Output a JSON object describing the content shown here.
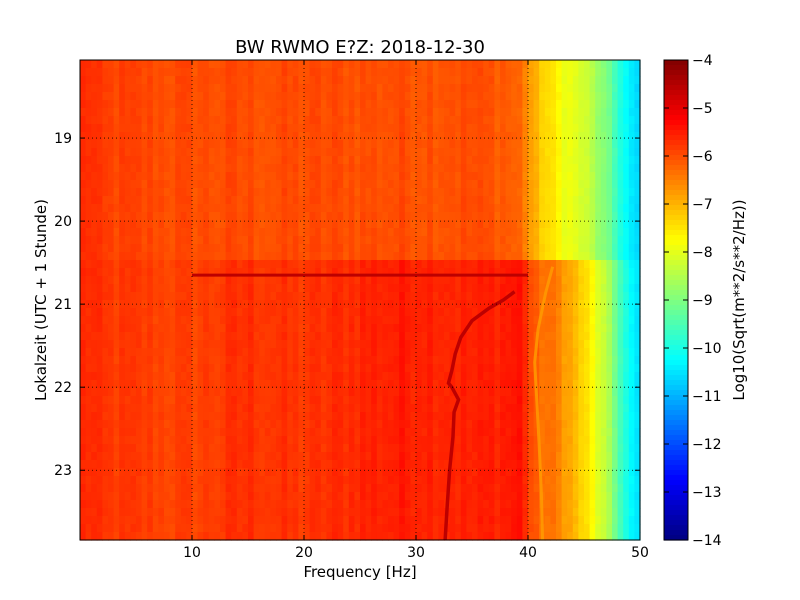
{
  "chart_data": {
    "type": "heatmap",
    "title": "BW RWMO E?Z: 2018-12-30",
    "xlabel": "Frequency [Hz]",
    "ylabel": "Lokalzeit (UTC + 1 Stunde)",
    "xlim": [
      0,
      50
    ],
    "ylim": [
      18.06,
      23.84
    ],
    "x_ticks": [
      10,
      20,
      30,
      40,
      50
    ],
    "x_tick_labels": [
      "10",
      "20",
      "30",
      "40",
      "50"
    ],
    "y_ticks": [
      19,
      20,
      21,
      22,
      23
    ],
    "y_tick_labels": [
      "19",
      "20",
      "21",
      "22",
      "23"
    ],
    "y_inverted": true,
    "grid": true,
    "colormap": "jet",
    "colorbar": {
      "label": "Log10(Sqrt(m**2/s**2/Hz))",
      "vmin": -14,
      "vmax": -4,
      "ticks": [
        -4,
        -5,
        -6,
        -7,
        -8,
        -9,
        -10,
        -11,
        -12,
        -13,
        -14
      ],
      "tick_labels": [
        "−4",
        "−5",
        "−6",
        "−7",
        "−8",
        "−9",
        "−10",
        "−11",
        "−12",
        "−13",
        "−14"
      ]
    },
    "frequency_profile": {
      "frequency_hz": [
        0,
        0.5,
        2,
        10,
        15,
        20,
        25,
        30,
        35,
        38,
        39.5,
        40.5,
        42,
        43,
        44,
        45,
        46,
        47,
        48,
        49,
        50
      ],
      "value_before_2030": [
        -5.8,
        -5.6,
        -5.9,
        -6.0,
        -6.0,
        -6.0,
        -6.0,
        -6.0,
        -6.0,
        -6.1,
        -6.3,
        -7.0,
        -7.5,
        -7.8,
        -8.0,
        -8.2,
        -8.6,
        -9.1,
        -9.7,
        -10.4,
        -10.8
      ],
      "value_after_2030": [
        -5.7,
        -5.6,
        -5.8,
        -5.9,
        -5.7,
        -5.8,
        -5.6,
        -5.5,
        -5.6,
        -5.5,
        -5.4,
        -6.2,
        -6.4,
        -6.6,
        -7.0,
        -7.4,
        -7.9,
        -8.5,
        -9.3,
        -10.2,
        -10.7
      ]
    },
    "event_line": {
      "time": 20.65,
      "freq_from": 10,
      "freq_to": 40,
      "value": -4.6
    },
    "tone_track": {
      "points": [
        [
          20.85,
          38.8
        ],
        [
          20.95,
          37.8
        ],
        [
          21.05,
          36.5
        ],
        [
          21.2,
          35.0
        ],
        [
          21.4,
          34.0
        ],
        [
          21.6,
          33.5
        ],
        [
          21.8,
          33.2
        ],
        [
          21.95,
          32.9
        ],
        [
          22.0,
          33.2
        ],
        [
          22.15,
          33.8
        ],
        [
          22.3,
          33.4
        ],
        [
          22.6,
          33.3
        ],
        [
          23.0,
          33.0
        ],
        [
          23.4,
          32.8
        ],
        [
          23.84,
          32.6
        ]
      ],
      "value": -4.6
    },
    "secondary_track": {
      "points": [
        [
          20.55,
          42.2
        ],
        [
          20.85,
          41.6
        ],
        [
          21.3,
          40.9
        ],
        [
          21.7,
          40.6
        ],
        [
          22.2,
          40.8
        ],
        [
          22.7,
          41.0
        ],
        [
          23.3,
          41.2
        ],
        [
          23.84,
          41.3
        ]
      ],
      "value": -6.8
    }
  }
}
